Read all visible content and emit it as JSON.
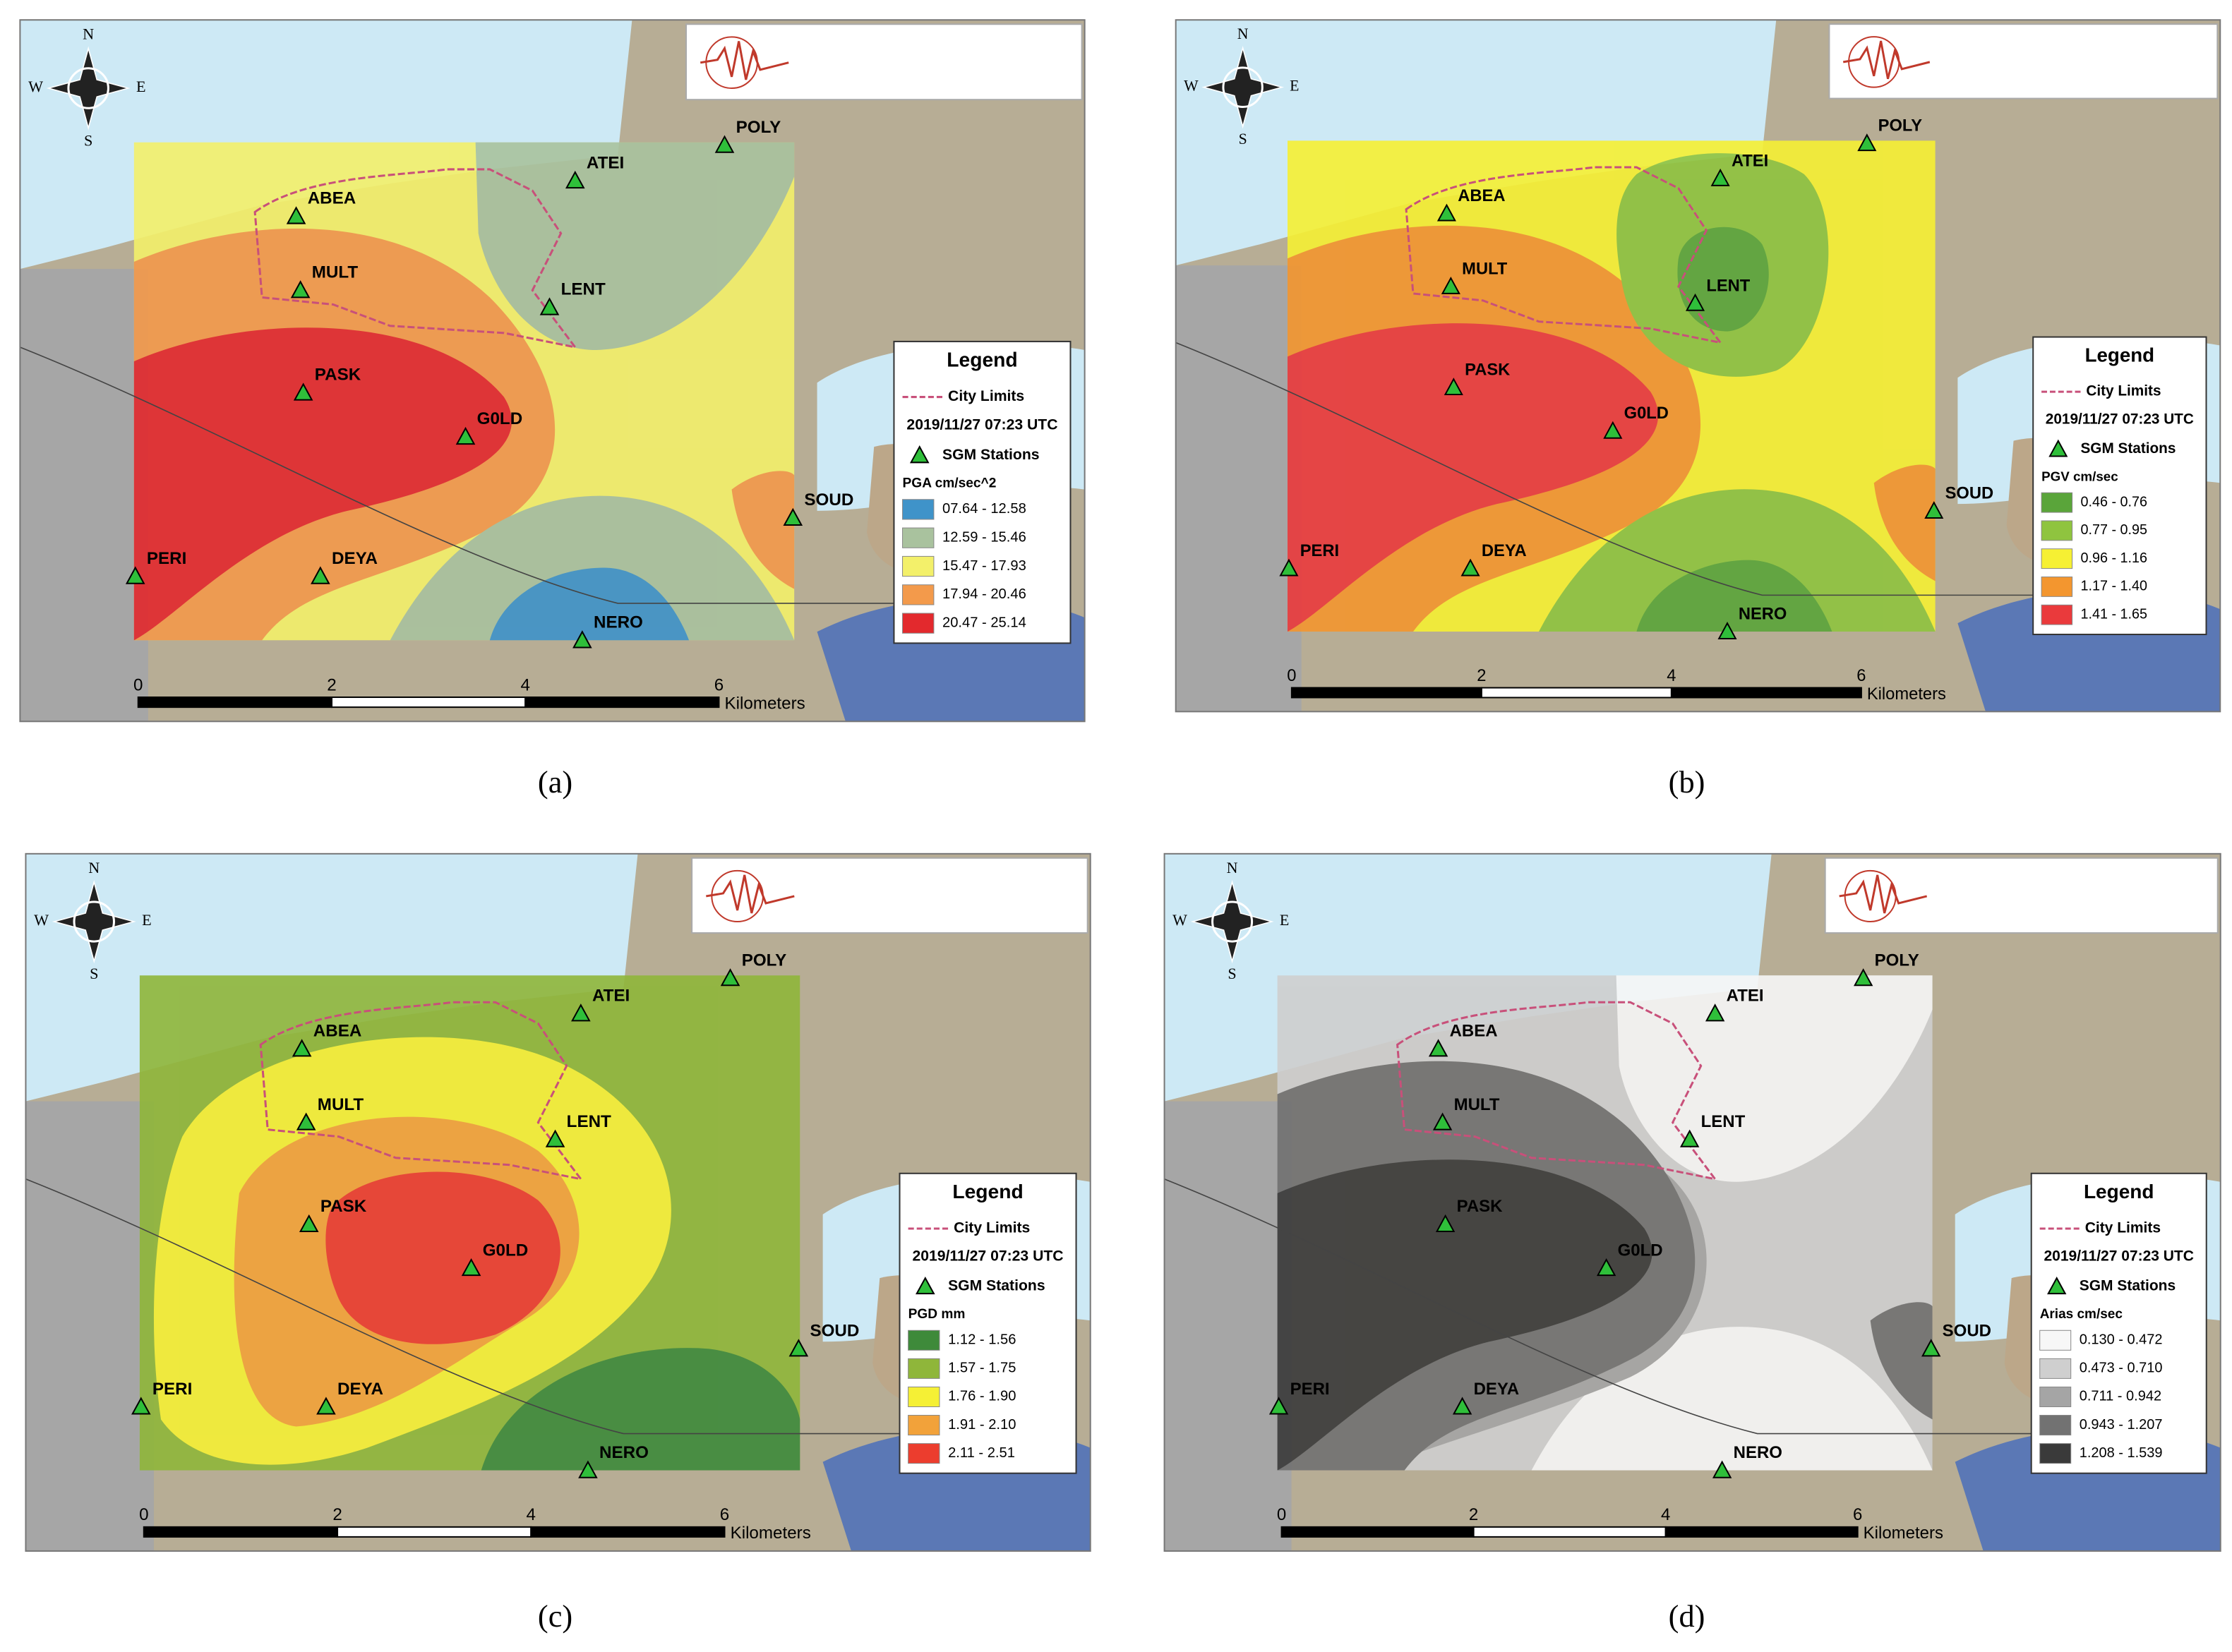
{
  "figure": {
    "compass": {
      "n": "N",
      "s": "S",
      "w": "W",
      "e": "E"
    },
    "stations": [
      "ABEA",
      "MULT",
      "PASK",
      "G0LD",
      "LENT",
      "ATEI",
      "POLY",
      "SOUD",
      "PERI",
      "DEYA",
      "NERO"
    ],
    "scale": [
      0,
      2,
      4,
      6
    ],
    "scale_unit": "Kilometers",
    "panels": [
      {
        "caption": "(a)",
        "legend_title": "Legend",
        "city_limits": "City Limits",
        "date": "2019/11/27 07:23 UTC",
        "stations_label": "SGM Stations",
        "quantity": "PGA cm/sec^2",
        "classes": [
          {
            "label": "07.64 - 12.58",
            "color": "#3f93c9"
          },
          {
            "label": "12.59 - 15.46",
            "color": "#a9c29e"
          },
          {
            "label": "15.47 - 17.93",
            "color": "#f3f06a"
          },
          {
            "label": "17.94 - 20.46",
            "color": "#f39a4b"
          },
          {
            "label": "20.47 - 25.14",
            "color": "#e3292d"
          }
        ]
      },
      {
        "caption": "(b)",
        "legend_title": "Legend",
        "city_limits": "City Limits",
        "date": "2019/11/27 07:23 UTC",
        "stations_label": "SGM Stations",
        "quantity": "PGV cm/sec",
        "classes": [
          {
            "label": "0.46 - 0.76",
            "color": "#5aa53a"
          },
          {
            "label": "0.77 - 0.95",
            "color": "#8fc43f"
          },
          {
            "label": "0.96 - 1.16",
            "color": "#f6f033"
          },
          {
            "label": "1.17 - 1.40",
            "color": "#f3962f"
          },
          {
            "label": "1.41 - 1.65",
            "color": "#ea3a3c"
          }
        ]
      },
      {
        "caption": "(c)",
        "legend_title": "Legend",
        "city_limits": "City Limits",
        "date": "2019/11/27 07:23 UTC",
        "stations_label": "SGM Stations",
        "quantity": "PGD mm",
        "classes": [
          {
            "label": "1.12 - 1.56",
            "color": "#3e8a3a"
          },
          {
            "label": "1.57 - 1.75",
            "color": "#8fb63a"
          },
          {
            "label": "1.76 - 1.90",
            "color": "#f5f035"
          },
          {
            "label": "1.91 - 2.10",
            "color": "#f2a23a"
          },
          {
            "label": "2.11 - 2.51",
            "color": "#ec3d2e"
          }
        ]
      },
      {
        "caption": "(d)",
        "legend_title": "Legend",
        "city_limits": "City Limits",
        "date": "2019/11/27 07:23 UTC",
        "stations_label": "SGM Stations",
        "quantity": "Arias cm/sec",
        "classes": [
          {
            "label": "0.130 - 0.472",
            "color": "#f7f7f7"
          },
          {
            "label": "0.473 - 0.710",
            "color": "#cfcfcf"
          },
          {
            "label": "0.711 - 0.942",
            "color": "#a5a5a5"
          },
          {
            "label": "0.943 - 1.207",
            "color": "#727272"
          },
          {
            "label": "1.208 - 1.539",
            "color": "#3a3a3a"
          }
        ]
      }
    ]
  }
}
